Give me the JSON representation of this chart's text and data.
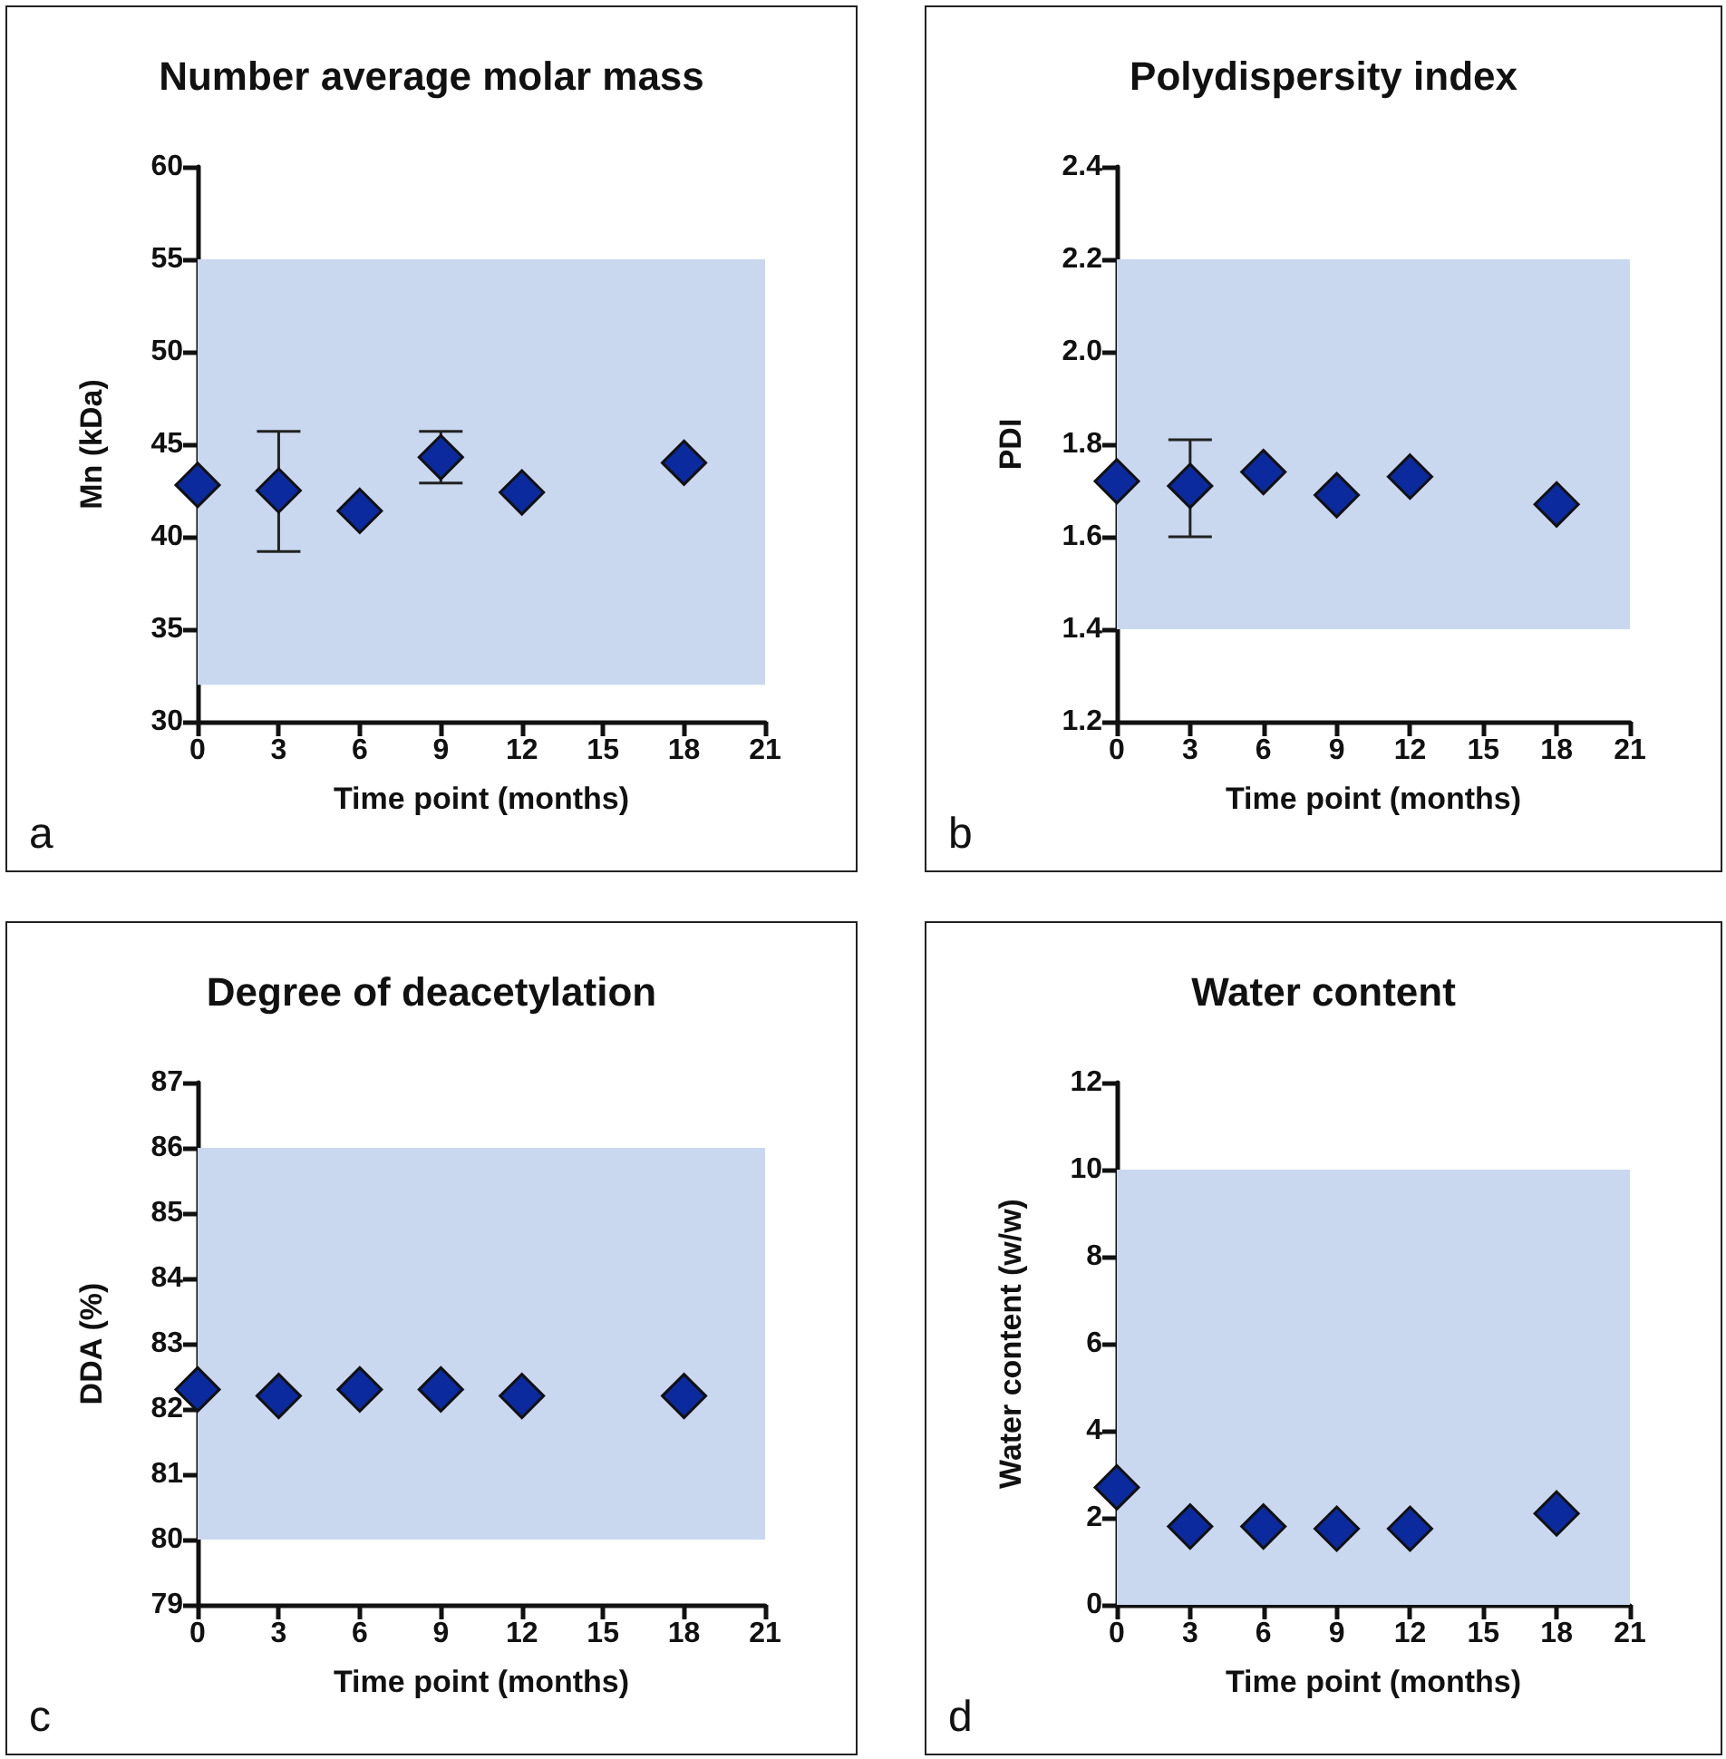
{
  "chart_data": [
    {
      "type": "scatter",
      "title": "Number average molar mass",
      "xlabel": "Time point (months)",
      "ylabel": "Mn (kDa)",
      "annotations": [
        "a"
      ],
      "x": [
        0,
        3,
        6,
        9,
        12,
        18
      ],
      "series": [
        {
          "color": "#0b2a9e",
          "values": [
            42.8,
            42.5,
            41.4,
            44.3,
            42.4,
            44.0
          ],
          "errors": [
            null,
            [
              39.2,
              45.7
            ],
            null,
            [
              42.9,
              45.7
            ],
            null,
            null
          ]
        }
      ],
      "xlim": [
        0,
        21
      ],
      "xticks": [
        0,
        3,
        6,
        9,
        12,
        15,
        18,
        21
      ],
      "ylim": [
        30,
        60
      ],
      "yticks": [
        30,
        35,
        40,
        45,
        50,
        55,
        60
      ],
      "bands": [
        {
          "axis": "y",
          "from": 32,
          "to": 55,
          "color": "#c9d8ef"
        }
      ],
      "marker": "diamond"
    },
    {
      "type": "scatter",
      "title": "Polydispersity index",
      "xlabel": "Time point (months)",
      "ylabel": "PDI",
      "annotations": [
        "b"
      ],
      "x": [
        0,
        3,
        6,
        9,
        12,
        18
      ],
      "series": [
        {
          "color": "#0b2a9e",
          "values": [
            1.72,
            1.71,
            1.74,
            1.69,
            1.73,
            1.67
          ],
          "errors": [
            null,
            [
              1.6,
              1.81
            ],
            null,
            null,
            null,
            null
          ]
        }
      ],
      "xlim": [
        0,
        21
      ],
      "xticks": [
        0,
        3,
        6,
        9,
        12,
        15,
        18,
        21
      ],
      "ylim": [
        1.2,
        2.4
      ],
      "yticks": [
        {
          "value": 1.2,
          "label": "1.2"
        },
        {
          "value": 1.4,
          "label": "1.4"
        },
        {
          "value": 1.6,
          "label": "1.6"
        },
        {
          "value": 1.8,
          "label": "1.8"
        },
        {
          "value": 2.0,
          "label": "2.0"
        },
        {
          "value": 2.2,
          "label": "2.2"
        },
        {
          "value": 2.4,
          "label": "2.4"
        }
      ],
      "bands": [
        {
          "axis": "y",
          "from": 1.4,
          "to": 2.2,
          "color": "#c9d8ef"
        }
      ],
      "marker": "diamond"
    },
    {
      "type": "scatter",
      "title": "Degree of deacetylation",
      "xlabel": "Time point (months)",
      "ylabel": "DDA (%)",
      "annotations": [
        "c"
      ],
      "x": [
        0,
        3,
        6,
        9,
        12,
        18
      ],
      "series": [
        {
          "color": "#0b2a9e",
          "values": [
            82.3,
            82.2,
            82.3,
            82.3,
            82.2,
            82.2
          ]
        }
      ],
      "xlim": [
        0,
        21
      ],
      "xticks": [
        0,
        3,
        6,
        9,
        12,
        15,
        18,
        21
      ],
      "ylim": [
        79,
        87
      ],
      "yticks": [
        79,
        80,
        81,
        82,
        83,
        84,
        85,
        86,
        87
      ],
      "bands": [
        {
          "axis": "y",
          "from": 80,
          "to": 86,
          "color": "#c9d8ef"
        }
      ],
      "marker": "diamond"
    },
    {
      "type": "scatter",
      "title": "Water content",
      "xlabel": "Time point (months)",
      "ylabel": "Water content (w/w)",
      "annotations": [
        "d"
      ],
      "x": [
        0,
        3,
        6,
        9,
        12,
        18
      ],
      "series": [
        {
          "color": "#0b2a9e",
          "values": [
            2.7,
            1.8,
            1.8,
            1.75,
            1.75,
            2.1
          ]
        }
      ],
      "xlim": [
        0,
        21
      ],
      "xticks": [
        0,
        3,
        6,
        9,
        12,
        15,
        18,
        21
      ],
      "ylim": [
        0,
        12
      ],
      "yticks": [
        0,
        2,
        4,
        6,
        8,
        10,
        12
      ],
      "bands": [
        {
          "axis": "y",
          "from": 0,
          "to": 10,
          "color": "#c9d8ef"
        }
      ],
      "marker": "diamond"
    }
  ]
}
